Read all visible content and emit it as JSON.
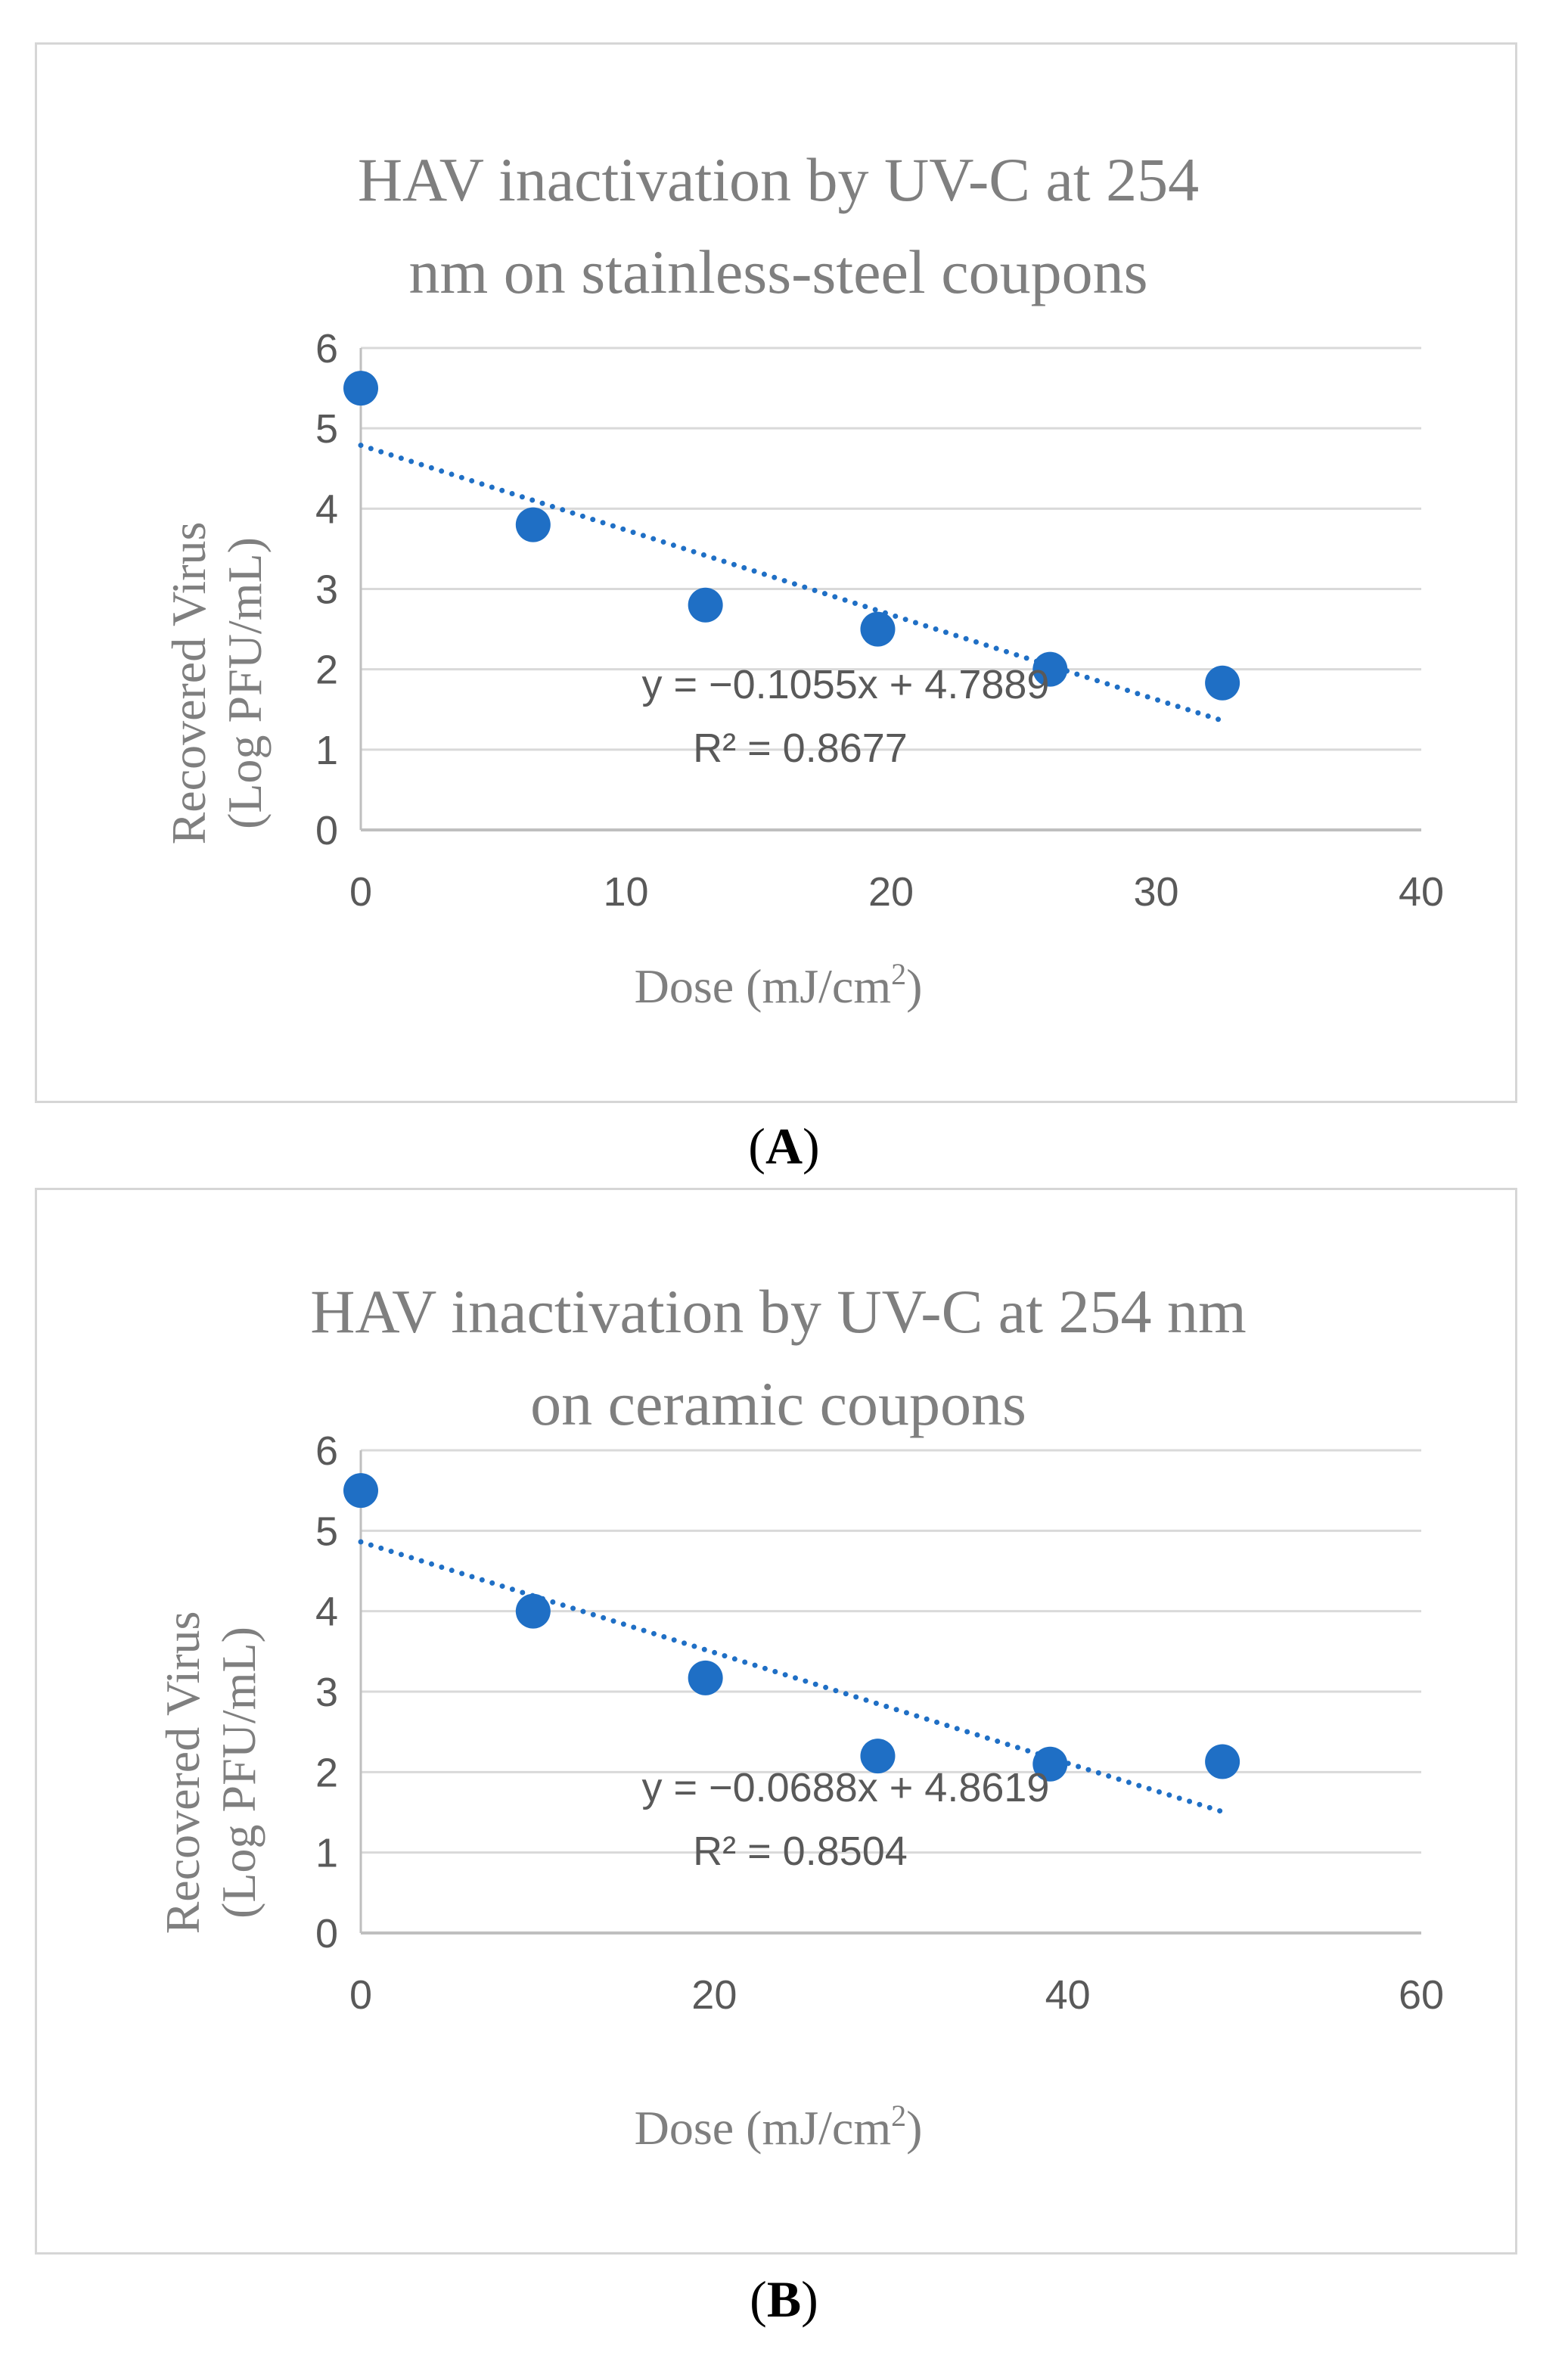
{
  "chart_data": [
    {
      "type": "scatter",
      "title_lines": [
        "HAV inactivation by UV-C at 254",
        "nm on stainless-steel coupons"
      ],
      "ylabel_lines": [
        "Recovered Virus",
        "(Log PFU/mL)"
      ],
      "xlabel": "Dose (mJ/cm",
      "xlabel_sup": "2",
      "xlabel_end": ")",
      "xlim": [
        0,
        40
      ],
      "ylim": [
        0,
        6
      ],
      "xticks": [
        0,
        10,
        20,
        30,
        40
      ],
      "yticks": [
        0,
        1,
        2,
        3,
        4,
        5,
        6
      ],
      "grid": "horizontal",
      "color": "#1f6fc5",
      "x": [
        0,
        6.5,
        13,
        19.5,
        26,
        32.5
      ],
      "y": [
        5.5,
        3.8,
        2.8,
        2.5,
        2.0,
        1.83
      ],
      "trendline": {
        "slope": -0.1055,
        "intercept": 4.7889,
        "x_range": [
          0,
          32.5
        ]
      },
      "equation": "y = −0.1055x + 4.7889",
      "r_squared": "R² = 0.8677"
    },
    {
      "type": "scatter",
      "title_lines": [
        "HAV inactivation by UV-C at 254 nm",
        "on ceramic coupons"
      ],
      "ylabel_lines": [
        "Recovered Virus",
        "(Log  PFU/mL)"
      ],
      "xlabel": "Dose (mJ/cm",
      "xlabel_sup": "2",
      "xlabel_end": ")",
      "xlim": [
        0,
        60
      ],
      "ylim": [
        0,
        6
      ],
      "xticks": [
        0,
        20,
        40,
        60
      ],
      "yticks": [
        0,
        1,
        2,
        3,
        4,
        5,
        6
      ],
      "grid": "horizontal",
      "color": "#1f6fc5",
      "x": [
        0,
        9.75,
        19.5,
        29.25,
        39,
        48.75
      ],
      "y": [
        5.5,
        4.0,
        3.17,
        2.2,
        2.1,
        2.13
      ],
      "trendline": {
        "slope": -0.0688,
        "intercept": 4.8619,
        "x_range": [
          0,
          48.75
        ]
      },
      "equation": "y = −0.0688x + 4.8619",
      "r_squared": "R² = 0.8504"
    }
  ],
  "captions": [
    "A",
    "B"
  ]
}
